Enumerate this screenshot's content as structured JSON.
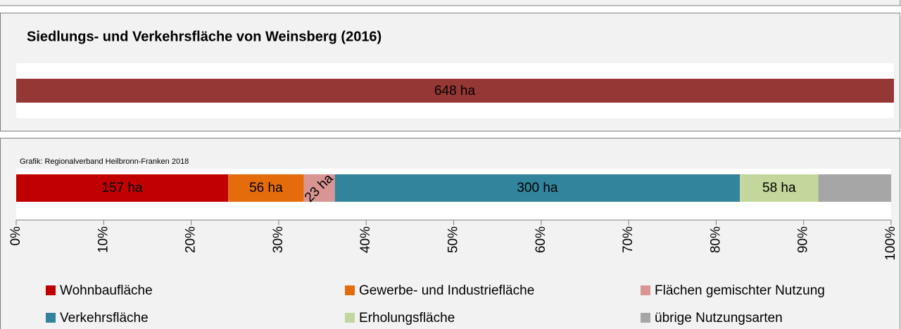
{
  "chart_data": [
    {
      "type": "bar",
      "title": "Siedlungs- und Verkehrsfläche von Weinsberg (2016)",
      "values": [
        648
      ],
      "value_labels": [
        "648 ha"
      ],
      "color": "#953735"
    },
    {
      "type": "stacked_bar_100",
      "source": "Grafik: Regionalverband Heilbronn-Franken 2018",
      "series": [
        {
          "name": "Wohnbaufläche",
          "color": "#c00000",
          "values": [
            157
          ],
          "value_labels": [
            "157 ha"
          ]
        },
        {
          "name": "Gewerbe- und Industriefläche",
          "color": "#e46c0a",
          "values": [
            56
          ],
          "value_labels": [
            "56 ha"
          ]
        },
        {
          "name": "Flächen gemischter Nutzung",
          "color": "#d99594",
          "values": [
            23
          ],
          "value_labels": [
            "23 ha"
          ]
        },
        {
          "name": "Verkehrsfläche",
          "color": "#31849b",
          "values": [
            300
          ],
          "value_labels": [
            "300 ha"
          ]
        },
        {
          "name": "Erholungsfläche",
          "color": "#c3d69b",
          "values": [
            58
          ],
          "value_labels": [
            "58 ha"
          ]
        },
        {
          "name": "übrige Nutzungsarten",
          "color": "#a6a6a6",
          "values": [
            54
          ]
        }
      ],
      "xlim": [
        0,
        100
      ],
      "xticks": [
        {
          "value": 0,
          "label": "0%"
        },
        {
          "value": 10,
          "label": "10%"
        },
        {
          "value": 20,
          "label": "20%"
        },
        {
          "value": 30,
          "label": "30%"
        },
        {
          "value": 40,
          "label": "40%"
        },
        {
          "value": 50,
          "label": "50%"
        },
        {
          "value": 60,
          "label": "60%"
        },
        {
          "value": 70,
          "label": "70%"
        },
        {
          "value": 80,
          "label": "80%"
        },
        {
          "value": 90,
          "label": "90%"
        },
        {
          "value": 100,
          "label": "100%"
        }
      ],
      "legend": "bottom"
    }
  ]
}
